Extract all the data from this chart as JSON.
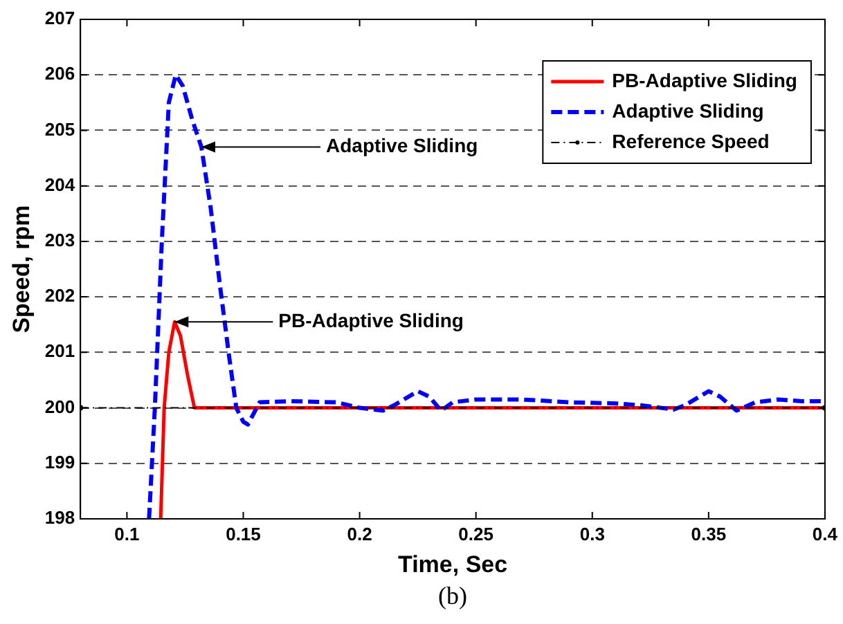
{
  "chart_data": {
    "type": "line",
    "xlabel": "Time, Sec",
    "ylabel": "Speed, rpm",
    "xlim": [
      0.08,
      0.4
    ],
    "xticks": [
      0.1,
      0.15,
      0.2,
      0.25,
      0.3,
      0.35,
      0.4
    ],
    "ylim": [
      198,
      207
    ],
    "yticks": [
      198,
      199,
      200,
      201,
      202,
      203,
      204,
      205,
      206,
      207
    ],
    "grid": "y",
    "legend": "top right",
    "series": [
      {
        "name": "PB-Adaptive Sliding",
        "color": "#ff0000",
        "line_style": "solid",
        "x": [
          0.1145,
          0.116,
          0.118,
          0.1205,
          0.123,
          0.126,
          0.129,
          0.4
        ],
        "values": [
          198,
          200,
          201,
          201.55,
          201.3,
          200.6,
          200,
          200
        ]
      },
      {
        "name": "Adaptive Sliding",
        "color": "#0000ff",
        "line_style": "dashed",
        "x": [
          0.1095,
          0.112,
          0.115,
          0.118,
          0.121,
          0.124,
          0.128,
          0.132,
          0.136,
          0.14,
          0.144,
          0.147,
          0.15,
          0.152,
          0.157,
          0.17,
          0.19,
          0.2,
          0.21,
          0.215,
          0.225,
          0.23,
          0.235,
          0.24,
          0.25,
          0.27,
          0.29,
          0.31,
          0.32,
          0.335,
          0.34,
          0.35,
          0.355,
          0.362,
          0.37,
          0.38,
          0.39,
          0.4
        ],
        "values": [
          198,
          200,
          203,
          205.5,
          206,
          205.8,
          205.2,
          204.7,
          203.6,
          202.2,
          200.9,
          200,
          199.75,
          199.7,
          200.1,
          200.12,
          200.1,
          200,
          199.95,
          200.05,
          200.3,
          200.2,
          199.95,
          200.1,
          200.15,
          200.15,
          200.1,
          200.08,
          200.05,
          199.97,
          200.05,
          200.3,
          200.2,
          199.95,
          200.1,
          200.15,
          200.12,
          200.12
        ]
      },
      {
        "name": "Reference Speed",
        "color": "#000000",
        "line_style": "dashdot",
        "marker": "circle",
        "x": [
          0.08,
          0.4
        ],
        "values": [
          200,
          200
        ]
      }
    ],
    "annotations": [
      {
        "text": "Adaptive Sliding",
        "x": 0.132,
        "y": 204.7
      },
      {
        "text": "PB-Adaptive Sliding",
        "x": 0.1205,
        "y": 201.55
      },
      "(b)"
    ]
  }
}
